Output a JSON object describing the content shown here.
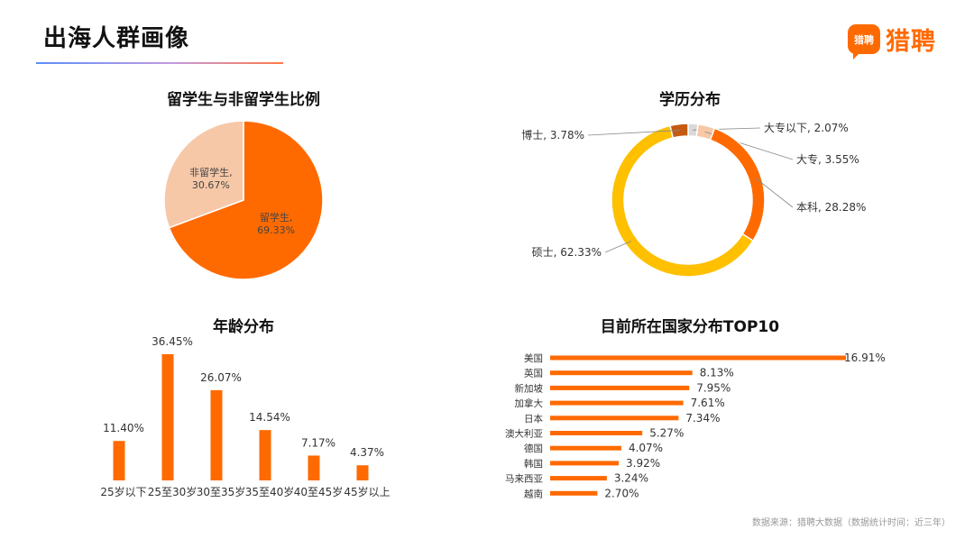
{
  "page": {
    "title": "出海人群画像",
    "logo_badge": "猎聘",
    "logo_text": "猎聘",
    "source": "数据来源：猎聘大数据（数据统计时间：近三年）",
    "accent": "#ff6a00"
  },
  "chart_data": [
    {
      "type": "pie",
      "title": "留学生与非留学生比例",
      "slices": [
        {
          "name": "留学生",
          "value": 69.33,
          "label": "69.33%",
          "color": "#ff6a00"
        },
        {
          "name": "非留学生",
          "value": 30.67,
          "label": "30.67%",
          "color": "#f6c8a8"
        }
      ]
    },
    {
      "type": "pie",
      "subtype": "donut",
      "title": "学历分布",
      "slices": [
        {
          "name": "大专以下",
          "value": 2.07,
          "label": "大专以下, 2.07%",
          "color": "#d9d9d9"
        },
        {
          "name": "大专",
          "value": 3.55,
          "label": "大专, 3.55%",
          "color": "#f6c8a8"
        },
        {
          "name": "本科",
          "value": 28.28,
          "label": "本科, 28.28%",
          "color": "#ff6a00"
        },
        {
          "name": "硕士",
          "value": 62.33,
          "label": "硕士, 62.33%",
          "color": "#ffc000"
        },
        {
          "name": "博士",
          "value": 3.78,
          "label": "博士, 3.78%",
          "color": "#c55a11"
        }
      ]
    },
    {
      "type": "bar",
      "title": "年龄分布",
      "categories": [
        "25岁以下",
        "25至30岁",
        "30至35岁",
        "35至40岁",
        "40至45岁",
        "45岁以上"
      ],
      "values": [
        11.4,
        36.45,
        26.07,
        14.54,
        7.17,
        4.37
      ],
      "labels": [
        "11.40%",
        "36.45%",
        "26.07%",
        "14.54%",
        "7.17%",
        "4.37%"
      ],
      "color": "#ff6a00"
    },
    {
      "type": "bar",
      "orientation": "horizontal",
      "title": "目前所在国家分布TOP10",
      "categories": [
        "美国",
        "英国",
        "新加坡",
        "加拿大",
        "日本",
        "澳大利亚",
        "德国",
        "韩国",
        "马来西亚",
        "越南"
      ],
      "values": [
        16.91,
        8.13,
        7.95,
        7.61,
        7.34,
        5.27,
        4.07,
        3.92,
        3.24,
        2.7
      ],
      "labels": [
        "16.91%",
        "8.13%",
        "7.95%",
        "7.61%",
        "7.34%",
        "5.27%",
        "4.07%",
        "3.92%",
        "3.24%",
        "2.70%"
      ],
      "color": "#ff6a00"
    }
  ]
}
